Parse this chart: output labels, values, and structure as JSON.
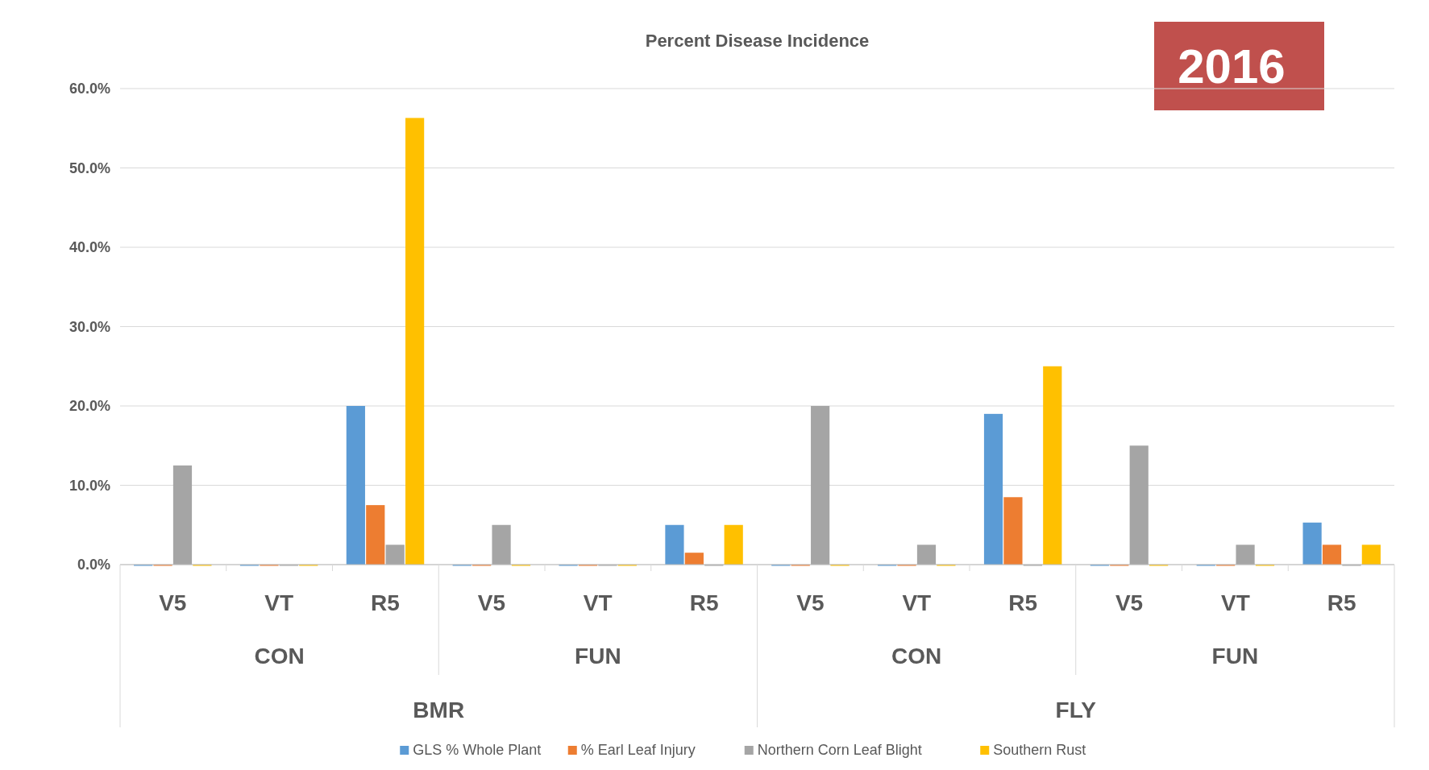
{
  "chart_data": {
    "type": "bar",
    "title": "Percent Disease Incidence",
    "categories": [
      "V5",
      "VT",
      "R5",
      "V5",
      "VT",
      "R5",
      "V5",
      "VT",
      "R5",
      "V5",
      "VT",
      "R5"
    ],
    "series": [
      {
        "name": "GLS % Whole Plant",
        "color": "#5b9bd5",
        "values": [
          0,
          0,
          20,
          0,
          0,
          5,
          0,
          0,
          19,
          0,
          0,
          5.3
        ]
      },
      {
        "name": "% Earl Leaf Injury",
        "color": "#ed7d31",
        "values": [
          0,
          0,
          7.5,
          0,
          0,
          1.5,
          0,
          0,
          8.5,
          0,
          0,
          2.5
        ]
      },
      {
        "name": "Northern Corn Leaf Blight",
        "color": "#a5a5a5",
        "values": [
          12.5,
          0,
          2.5,
          5,
          0,
          0,
          20,
          2.5,
          0,
          15,
          2.5,
          0
        ]
      },
      {
        "name": "Southern Rust",
        "color": "#ffc000",
        "values": [
          0,
          0,
          56.3,
          0,
          0,
          5,
          0,
          0,
          25,
          0,
          0,
          2.5
        ]
      }
    ],
    "ylim": [
      0,
      60
    ],
    "yticks": [
      {
        "value": 0,
        "label": "0.0%"
      },
      {
        "value": 10,
        "label": "10.0%"
      },
      {
        "value": 20,
        "label": "20.0%"
      },
      {
        "value": 30,
        "label": "30.0%"
      },
      {
        "value": 40,
        "label": "40.0%"
      },
      {
        "value": 50,
        "label": "50.0%"
      },
      {
        "value": 60,
        "label": "60.0%"
      }
    ],
    "grid": "y",
    "legend": "bottom",
    "annotations": [
      "2016",
      "CON",
      "FUN",
      "CON",
      "FUN",
      "BMR",
      "FLY"
    ]
  }
}
